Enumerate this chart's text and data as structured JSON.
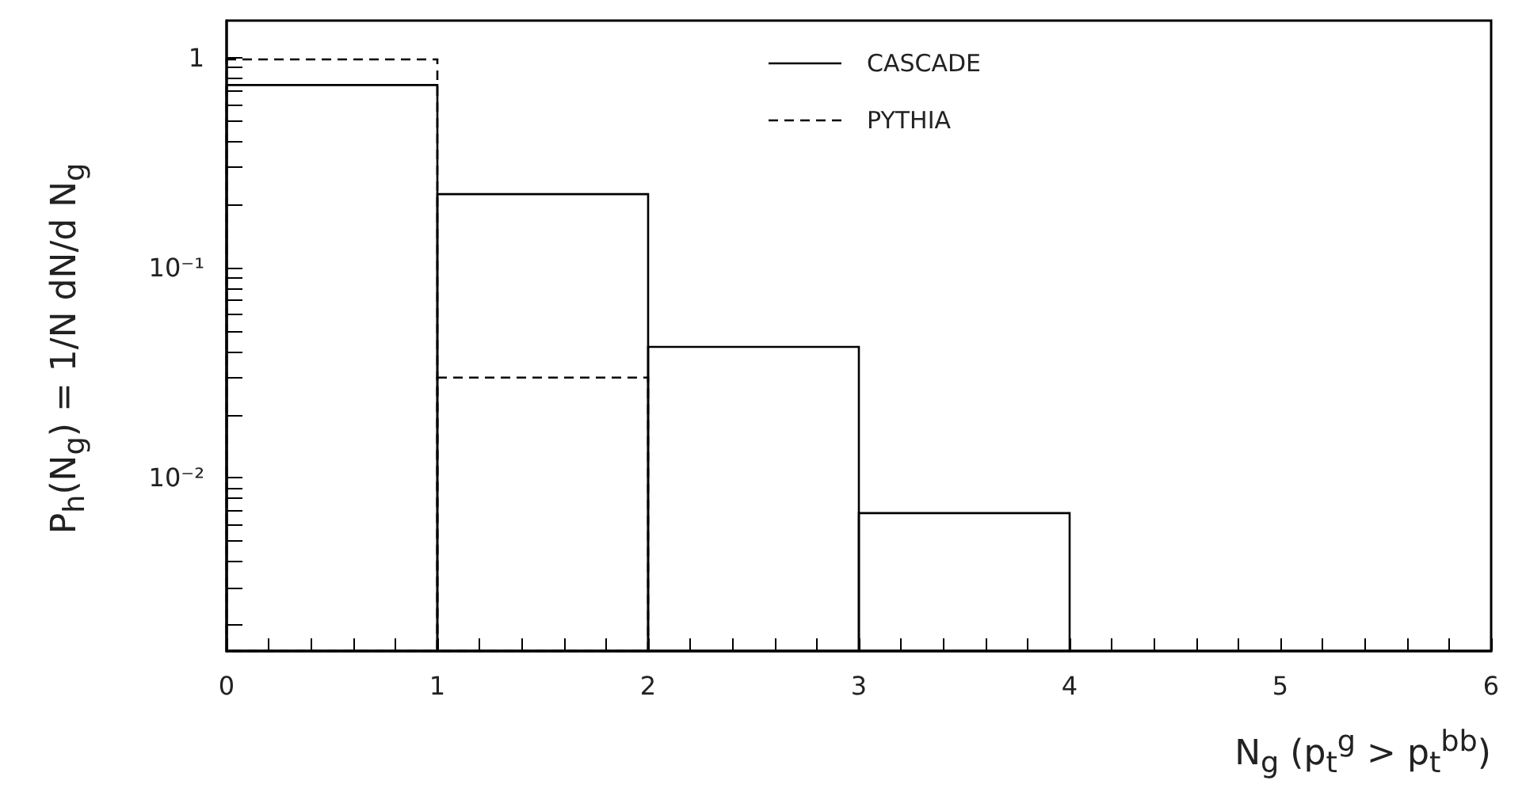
{
  "chart_data": {
    "type": "histogram",
    "xlabel": "N$_{g}$  (p$_{t}$$^{g}$ >  p$_{t}$$^{bb}$)",
    "ylabel": "P$_{h}$(N$_{g}$) = 1/N dN/d N$_{g}$",
    "bins": [
      0,
      1,
      2,
      3,
      4,
      5,
      6
    ],
    "series": [
      {
        "name": "CASCADE",
        "color": "#000000",
        "line_style": "solid",
        "values": [
          0.74,
          0.224,
          0.042,
          0.0068,
          null,
          null
        ]
      },
      {
        "name": "PYTHIA",
        "color": "#000000",
        "line_style": "dashed",
        "values": [
          0.98,
          0.03,
          null,
          null,
          null,
          null
        ]
      }
    ],
    "log": "y",
    "legend": "top",
    "grid": false,
    "xlim": [
      0,
      6
    ],
    "xticks": [
      0,
      {
        "value": 0.2,
        "label": null
      },
      {
        "value": 0.4,
        "label": null
      },
      {
        "value": 0.6,
        "label": null
      },
      {
        "value": 0.8,
        "label": null
      },
      1,
      {
        "value": 1.2,
        "label": null
      },
      {
        "value": 1.4,
        "label": null
      },
      {
        "value": 1.6,
        "label": null
      },
      {
        "value": 1.8,
        "label": null
      },
      2,
      {
        "value": 2.2,
        "label": null
      },
      {
        "value": 2.4,
        "label": null
      },
      {
        "value": 2.6,
        "label": null
      },
      {
        "value": 2.8,
        "label": null
      },
      3,
      {
        "value": 3.2,
        "label": null
      },
      {
        "value": 3.4,
        "label": null
      },
      {
        "value": 3.6,
        "label": null
      },
      {
        "value": 3.8,
        "label": null
      },
      4,
      {
        "value": 4.2,
        "label": null
      },
      {
        "value": 4.4,
        "label": null
      },
      {
        "value": 4.6,
        "label": null
      },
      {
        "value": 4.8,
        "label": null
      },
      5,
      {
        "value": 5.2,
        "label": null
      },
      {
        "value": 5.4,
        "label": null
      },
      {
        "value": 5.6,
        "label": null
      },
      {
        "value": 5.8,
        "label": null
      },
      6
    ],
    "ylim": [
      0.0015,
      1.5
    ],
    "yticks": [
      {
        "value": 0.002,
        "label": null
      },
      {
        "value": 0.003,
        "label": null
      },
      {
        "value": 0.004,
        "label": null
      },
      {
        "value": 0.005,
        "label": null
      },
      {
        "value": 0.006,
        "label": null
      },
      {
        "value": 0.007,
        "label": null
      },
      {
        "value": 0.008,
        "label": null
      },
      {
        "value": 0.009,
        "label": null
      },
      {
        "value": 0.01,
        "label": "10⁻²"
      },
      {
        "value": 0.02,
        "label": null
      },
      {
        "value": 0.03,
        "label": null
      },
      {
        "value": 0.04,
        "label": null
      },
      {
        "value": 0.05,
        "label": null
      },
      {
        "value": 0.06,
        "label": null
      },
      {
        "value": 0.07,
        "label": null
      },
      {
        "value": 0.08,
        "label": null
      },
      {
        "value": 0.09,
        "label": null
      },
      {
        "value": 0.1,
        "label": "10⁻¹"
      },
      {
        "value": 0.2,
        "label": null
      },
      {
        "value": 0.3,
        "label": null
      },
      {
        "value": 0.4,
        "label": null
      },
      {
        "value": 0.5,
        "label": null
      },
      {
        "value": 0.6,
        "label": null
      },
      {
        "value": 0.7,
        "label": null
      },
      {
        "value": 0.8,
        "label": null
      },
      {
        "value": 0.9,
        "label": null
      },
      1
    ]
  }
}
